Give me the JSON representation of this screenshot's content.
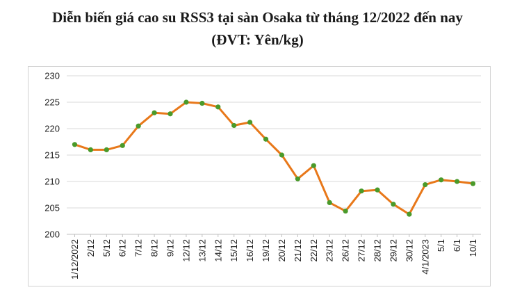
{
  "title": "Diễn biến giá cao su RSS3 tại sàn Osaka từ tháng 12/2022 đến nay",
  "subtitle": "(ĐVT: Yên/kg)",
  "colors": {
    "line": "#e8781a",
    "marker": "#4a9a2a",
    "grid": "#d9d9d9",
    "axis": "#bfbfbf"
  },
  "chart_data": {
    "type": "line",
    "title": "Diễn biến giá cao su RSS3 tại sàn Osaka từ tháng 12/2022 đến nay",
    "subtitle": "(ĐVT: Yên/kg)",
    "xlabel": "",
    "ylabel": "",
    "ylim": [
      200,
      230
    ],
    "yticks": [
      200,
      205,
      210,
      215,
      220,
      225,
      230
    ],
    "grid": true,
    "legend": "none",
    "categories": [
      "1/12/2022",
      "2/12",
      "5/12",
      "6/12",
      "7/12",
      "8/12",
      "9/12",
      "12/12",
      "13/12",
      "14/12",
      "15/12",
      "16/12",
      "19/12",
      "20/12",
      "21/12",
      "22/12",
      "23/12",
      "26/12",
      "27/12",
      "28/12",
      "29/12",
      "30/12",
      "4/1/2023",
      "5/1",
      "6/1",
      "10/1"
    ],
    "values": [
      217.0,
      216.0,
      216.0,
      216.8,
      220.5,
      223.0,
      222.8,
      225.0,
      224.8,
      224.1,
      220.6,
      221.2,
      218.0,
      215.0,
      210.5,
      213.0,
      206.0,
      204.4,
      208.2,
      208.4,
      205.7,
      203.8,
      209.4,
      210.3,
      210.0,
      209.6
    ]
  }
}
